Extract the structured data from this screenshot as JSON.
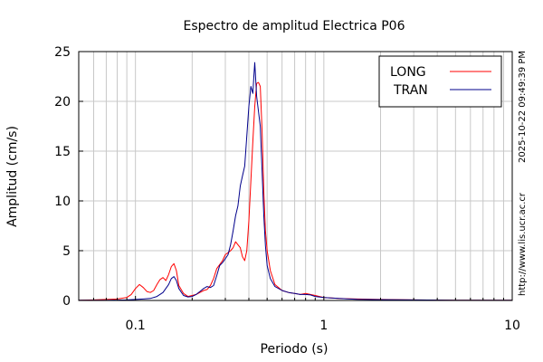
{
  "chart_data": {
    "type": "line",
    "title": "Espectro de amplitud Electrica P06",
    "xlabel": "Periodo (s)",
    "ylabel": "Amplitud (cm/s)",
    "xscale": "log",
    "xlim": [
      0.05,
      10
    ],
    "ylim": [
      0,
      25
    ],
    "x_ticks": [
      {
        "value": 0.1,
        "label": "0.1"
      },
      {
        "value": 1,
        "label": "1"
      },
      {
        "value": 10,
        "label": "10"
      }
    ],
    "y_ticks": [
      0,
      5,
      10,
      15,
      20,
      25
    ],
    "grid": true,
    "legend": "top-right",
    "side_text": [
      "2025-10-22 09:49:39 PM",
      "http://www.lis.ucr.ac.cr"
    ],
    "series": [
      {
        "name": "LONG",
        "color": "#ff0000",
        "points": [
          [
            0.05,
            0.02
          ],
          [
            0.06,
            0.05
          ],
          [
            0.07,
            0.1
          ],
          [
            0.08,
            0.15
          ],
          [
            0.09,
            0.3
          ],
          [
            0.095,
            0.6
          ],
          [
            0.1,
            1.2
          ],
          [
            0.105,
            1.6
          ],
          [
            0.11,
            1.3
          ],
          [
            0.115,
            0.9
          ],
          [
            0.12,
            0.8
          ],
          [
            0.125,
            1.0
          ],
          [
            0.13,
            1.6
          ],
          [
            0.135,
            2.1
          ],
          [
            0.14,
            2.3
          ],
          [
            0.145,
            2.0
          ],
          [
            0.15,
            2.6
          ],
          [
            0.155,
            3.4
          ],
          [
            0.16,
            3.7
          ],
          [
            0.165,
            3.0
          ],
          [
            0.17,
            1.5
          ],
          [
            0.18,
            0.7
          ],
          [
            0.19,
            0.4
          ],
          [
            0.2,
            0.5
          ],
          [
            0.21,
            0.6
          ],
          [
            0.22,
            0.8
          ],
          [
            0.23,
            1.0
          ],
          [
            0.24,
            1.1
          ],
          [
            0.25,
            1.5
          ],
          [
            0.26,
            2.2
          ],
          [
            0.27,
            3.2
          ],
          [
            0.28,
            3.6
          ],
          [
            0.29,
            4.0
          ],
          [
            0.3,
            4.6
          ],
          [
            0.31,
            4.8
          ],
          [
            0.32,
            5.0
          ],
          [
            0.33,
            5.3
          ],
          [
            0.34,
            5.9
          ],
          [
            0.35,
            5.6
          ],
          [
            0.36,
            5.3
          ],
          [
            0.37,
            4.4
          ],
          [
            0.38,
            4.0
          ],
          [
            0.39,
            5.0
          ],
          [
            0.4,
            8.0
          ],
          [
            0.41,
            12.0
          ],
          [
            0.42,
            16.0
          ],
          [
            0.43,
            19.5
          ],
          [
            0.44,
            21.8
          ],
          [
            0.45,
            21.9
          ],
          [
            0.46,
            21.5
          ],
          [
            0.47,
            17.0
          ],
          [
            0.48,
            11.0
          ],
          [
            0.49,
            7.0
          ],
          [
            0.5,
            5.0
          ],
          [
            0.52,
            3.0
          ],
          [
            0.55,
            1.6
          ],
          [
            0.6,
            1.0
          ],
          [
            0.65,
            0.8
          ],
          [
            0.7,
            0.7
          ],
          [
            0.75,
            0.6
          ],
          [
            0.8,
            0.7
          ],
          [
            0.85,
            0.6
          ],
          [
            0.9,
            0.5
          ],
          [
            1.0,
            0.3
          ],
          [
            1.2,
            0.2
          ],
          [
            1.5,
            0.15
          ],
          [
            2.0,
            0.1
          ],
          [
            3.0,
            0.05
          ],
          [
            5.0,
            0.03
          ],
          [
            10.0,
            0.02
          ]
        ]
      },
      {
        "name": "TRAN",
        "color": "#00008b",
        "points": [
          [
            0.05,
            0.02
          ],
          [
            0.07,
            0.03
          ],
          [
            0.09,
            0.05
          ],
          [
            0.1,
            0.1
          ],
          [
            0.11,
            0.15
          ],
          [
            0.12,
            0.2
          ],
          [
            0.13,
            0.4
          ],
          [
            0.14,
            0.8
          ],
          [
            0.15,
            1.6
          ],
          [
            0.155,
            2.2
          ],
          [
            0.16,
            2.4
          ],
          [
            0.165,
            2.0
          ],
          [
            0.17,
            1.2
          ],
          [
            0.18,
            0.5
          ],
          [
            0.19,
            0.35
          ],
          [
            0.2,
            0.4
          ],
          [
            0.21,
            0.6
          ],
          [
            0.22,
            0.9
          ],
          [
            0.23,
            1.2
          ],
          [
            0.24,
            1.4
          ],
          [
            0.25,
            1.3
          ],
          [
            0.26,
            1.5
          ],
          [
            0.27,
            2.5
          ],
          [
            0.28,
            3.5
          ],
          [
            0.29,
            3.8
          ],
          [
            0.3,
            4.2
          ],
          [
            0.31,
            4.6
          ],
          [
            0.32,
            5.6
          ],
          [
            0.33,
            7.0
          ],
          [
            0.34,
            8.5
          ],
          [
            0.35,
            9.5
          ],
          [
            0.36,
            11.5
          ],
          [
            0.37,
            12.5
          ],
          [
            0.38,
            13.5
          ],
          [
            0.39,
            16.5
          ],
          [
            0.4,
            19.5
          ],
          [
            0.41,
            21.5
          ],
          [
            0.42,
            20.8
          ],
          [
            0.425,
            22.5
          ],
          [
            0.43,
            23.9
          ],
          [
            0.44,
            20.5
          ],
          [
            0.45,
            19.0
          ],
          [
            0.46,
            17.5
          ],
          [
            0.47,
            13.0
          ],
          [
            0.48,
            8.5
          ],
          [
            0.49,
            5.5
          ],
          [
            0.5,
            3.5
          ],
          [
            0.52,
            2.2
          ],
          [
            0.55,
            1.4
          ],
          [
            0.6,
            1.0
          ],
          [
            0.65,
            0.8
          ],
          [
            0.7,
            0.7
          ],
          [
            0.75,
            0.6
          ],
          [
            0.8,
            0.6
          ],
          [
            0.85,
            0.55
          ],
          [
            0.9,
            0.4
          ],
          [
            1.0,
            0.3
          ],
          [
            1.2,
            0.2
          ],
          [
            1.5,
            0.12
          ],
          [
            2.0,
            0.08
          ],
          [
            3.0,
            0.05
          ],
          [
            5.0,
            0.03
          ],
          [
            10.0,
            0.02
          ]
        ]
      }
    ]
  }
}
